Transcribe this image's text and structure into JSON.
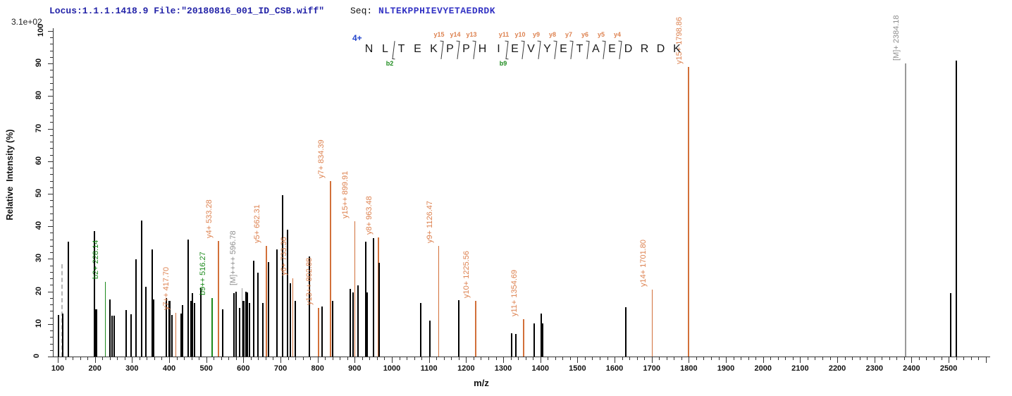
{
  "header": {
    "locus_file": "Locus:1.1.1.1418.9 File:\"20180816_001_ID_CSB.wiff\"",
    "seq_label": "Seq:",
    "sequence": "NLTEKPPHIEVYETAEDRDK"
  },
  "colors": {
    "unmatched_peak": "#000000",
    "dashed_peak": "#b5b5b5",
    "y_ion": "#d2703a",
    "y_ion_label": "#dd8250",
    "b_ion": "#1c8a1c",
    "b_ion_label": "#1c8a1c",
    "precursor": "#9a9a9a",
    "precursor_label": "#8f8f8f",
    "header_text": "#2323a8",
    "sequence_text": "#3333c4",
    "charge_text": "#2244cc"
  },
  "sequence_panel": {
    "charge": "4+",
    "residues": "NLTEKPPHIEVYETAEDRDK",
    "y_marks": [
      {
        "label": "y15",
        "after": 5
      },
      {
        "label": "y14",
        "after": 6
      },
      {
        "label": "y13",
        "after": 7
      },
      {
        "label": "y11",
        "after": 9
      },
      {
        "label": "y10",
        "after": 10
      },
      {
        "label": "y9",
        "after": 11
      },
      {
        "label": "y8",
        "after": 12
      },
      {
        "label": "y7",
        "after": 13
      },
      {
        "label": "y6",
        "after": 14
      },
      {
        "label": "y5",
        "after": 15
      },
      {
        "label": "y4",
        "after": 16
      }
    ],
    "b_marks": [
      {
        "label": "b2",
        "after": 2
      },
      {
        "label": "b9",
        "after": 9
      }
    ]
  },
  "chart_data": {
    "type": "bar",
    "subtype": "ms2-fragment-spectrum",
    "title": "",
    "xlabel": "m/z",
    "ylabel": "Relative  Intensity (%)",
    "intensity_scale_label": "3.1e+02",
    "x_axis": {
      "min": 100,
      "max": 2600,
      "major_tick": 100,
      "minor_tick": 20,
      "last_labeled_tick": 2500
    },
    "y_axis": {
      "min": 0,
      "max": 100,
      "major_tick": 10,
      "minor_tick": 2
    },
    "legend_position": "none",
    "grid": false,
    "peaks": [
      {
        "mz": 102,
        "i": 12.8,
        "type": "unmatched"
      },
      {
        "mz": 110,
        "i": 28.4,
        "type": "dashed"
      },
      {
        "mz": 113,
        "i": 13.2,
        "type": "unmatched"
      },
      {
        "mz": 128,
        "i": 35.2,
        "type": "unmatched"
      },
      {
        "mz": 199,
        "i": 38.5,
        "type": "unmatched"
      },
      {
        "mz": 203,
        "i": 14.5,
        "type": "unmatched",
        "w": 3
      },
      {
        "mz": 228.14,
        "i": 23,
        "type": "b",
        "label": "b2+ 228.14"
      },
      {
        "mz": 240,
        "i": 17.5,
        "type": "unmatched"
      },
      {
        "mz": 246,
        "i": 12.5,
        "type": "unmatched"
      },
      {
        "mz": 252,
        "i": 12.5,
        "type": "unmatched"
      },
      {
        "mz": 284,
        "i": 14.3,
        "type": "unmatched"
      },
      {
        "mz": 297,
        "i": 13,
        "type": "unmatched"
      },
      {
        "mz": 311,
        "i": 29.9,
        "type": "unmatched"
      },
      {
        "mz": 326,
        "i": 41.8,
        "type": "unmatched"
      },
      {
        "mz": 337,
        "i": 21.5,
        "type": "unmatched"
      },
      {
        "mz": 355,
        "i": 33,
        "type": "unmatched"
      },
      {
        "mz": 359,
        "i": 17.5,
        "type": "unmatched"
      },
      {
        "mz": 393,
        "i": 18,
        "type": "unmatched"
      },
      {
        "mz": 400,
        "i": 17,
        "type": "unmatched",
        "w": 3
      },
      {
        "mz": 408,
        "i": 12.8,
        "type": "unmatched"
      },
      {
        "mz": 417.7,
        "i": 13.5,
        "type": "y",
        "label": "y7++ 417.70"
      },
      {
        "mz": 433,
        "i": 13.2,
        "type": "unmatched"
      },
      {
        "mz": 437,
        "i": 15.8,
        "type": "unmatched"
      },
      {
        "mz": 452,
        "i": 35.9,
        "type": "unmatched"
      },
      {
        "mz": 459,
        "i": 17,
        "type": "unmatched"
      },
      {
        "mz": 463,
        "i": 19.5,
        "type": "unmatched"
      },
      {
        "mz": 469,
        "i": 16.5,
        "type": "unmatched"
      },
      {
        "mz": 486,
        "i": 21,
        "type": "unmatched"
      },
      {
        "mz": 516.27,
        "i": 18,
        "type": "b",
        "label": "b9++ 516.27"
      },
      {
        "mz": 533.28,
        "i": 35.5,
        "type": "y",
        "label": "y4+ 533.28"
      },
      {
        "mz": 545,
        "i": 14.5,
        "type": "unmatched"
      },
      {
        "mz": 575,
        "i": 19.5,
        "type": "unmatched"
      },
      {
        "mz": 581,
        "i": 20,
        "type": "unmatched"
      },
      {
        "mz": 590,
        "i": 15,
        "type": "unmatched"
      },
      {
        "mz": 596.78,
        "i": 21,
        "type": "M",
        "label": "[M]++++ 596.78"
      },
      {
        "mz": 600,
        "i": 17,
        "type": "unmatched",
        "w": 3
      },
      {
        "mz": 606,
        "i": 20,
        "type": "unmatched"
      },
      {
        "mz": 611,
        "i": 19.7,
        "type": "unmatched"
      },
      {
        "mz": 616,
        "i": 16.5,
        "type": "unmatched"
      },
      {
        "mz": 627,
        "i": 29.5,
        "type": "unmatched"
      },
      {
        "mz": 640,
        "i": 25.8,
        "type": "unmatched"
      },
      {
        "mz": 653,
        "i": 16.5,
        "type": "unmatched"
      },
      {
        "mz": 662.31,
        "i": 34,
        "type": "y",
        "label": "y5+ 662.31"
      },
      {
        "mz": 667,
        "i": 29,
        "type": "unmatched"
      },
      {
        "mz": 690,
        "i": 33,
        "type": "unmatched"
      },
      {
        "mz": 706,
        "i": 49.5,
        "type": "unmatched"
      },
      {
        "mz": 718,
        "i": 39,
        "type": "unmatched"
      },
      {
        "mz": 726,
        "i": 22.5,
        "type": "unmatched"
      },
      {
        "mz": 733.36,
        "i": 24,
        "type": "y",
        "label": "y6+ 733.36"
      },
      {
        "mz": 739,
        "i": 17,
        "type": "unmatched"
      },
      {
        "mz": 778,
        "i": 30.8,
        "type": "unmatched"
      },
      {
        "mz": 802.88,
        "i": 15,
        "type": "y",
        "label": "y13++ 802.88"
      },
      {
        "mz": 812,
        "i": 15.4,
        "type": "unmatched"
      },
      {
        "mz": 834.39,
        "i": 54,
        "type": "y",
        "label": "y7+ 834.39"
      },
      {
        "mz": 841,
        "i": 17,
        "type": "unmatched"
      },
      {
        "mz": 888,
        "i": 20.8,
        "type": "unmatched"
      },
      {
        "mz": 895,
        "i": 19.7,
        "type": "unmatched"
      },
      {
        "mz": 899.91,
        "i": 41.5,
        "type": "y",
        "label": "y15++ 899.91"
      },
      {
        "mz": 908,
        "i": 21.9,
        "type": "unmatched"
      },
      {
        "mz": 929,
        "i": 35.3,
        "type": "unmatched"
      },
      {
        "mz": 932,
        "i": 19.7,
        "type": "unmatched",
        "w": 3
      },
      {
        "mz": 950,
        "i": 36.4,
        "type": "unmatched"
      },
      {
        "mz": 963.48,
        "i": 36.6,
        "type": "y",
        "label": "y8+ 963.48"
      },
      {
        "mz": 966,
        "i": 28.8,
        "type": "unmatched"
      },
      {
        "mz": 1078,
        "i": 16.5,
        "type": "unmatched"
      },
      {
        "mz": 1103,
        "i": 11,
        "type": "unmatched"
      },
      {
        "mz": 1126.47,
        "i": 34,
        "type": "y",
        "label": "y9+ 1126.47"
      },
      {
        "mz": 1180,
        "i": 17.3,
        "type": "unmatched"
      },
      {
        "mz": 1225.56,
        "i": 17,
        "type": "y",
        "label": "y10+ 1225.56"
      },
      {
        "mz": 1323,
        "i": 7.1,
        "type": "unmatched"
      },
      {
        "mz": 1335,
        "i": 6.9,
        "type": "unmatched"
      },
      {
        "mz": 1354.69,
        "i": 11.5,
        "type": "y",
        "label": "y11+ 1354.69"
      },
      {
        "mz": 1384,
        "i": 10.2,
        "type": "unmatched"
      },
      {
        "mz": 1402,
        "i": 13.2,
        "type": "unmatched"
      },
      {
        "mz": 1406,
        "i": 10.2,
        "type": "unmatched",
        "w": 3
      },
      {
        "mz": 1630,
        "i": 15.2,
        "type": "unmatched"
      },
      {
        "mz": 1701.8,
        "i": 20.5,
        "type": "y",
        "label": "y14+ 1701.80"
      },
      {
        "mz": 1798.86,
        "i": 89,
        "type": "y",
        "label": "y15+ 1798.86"
      },
      {
        "mz": 2384.18,
        "i": 90,
        "type": "M",
        "label": "[M]+ 2384.18"
      },
      {
        "mz": 2505,
        "i": 19.5,
        "type": "unmatched"
      },
      {
        "mz": 2521,
        "i": 91,
        "type": "unmatched"
      }
    ]
  }
}
